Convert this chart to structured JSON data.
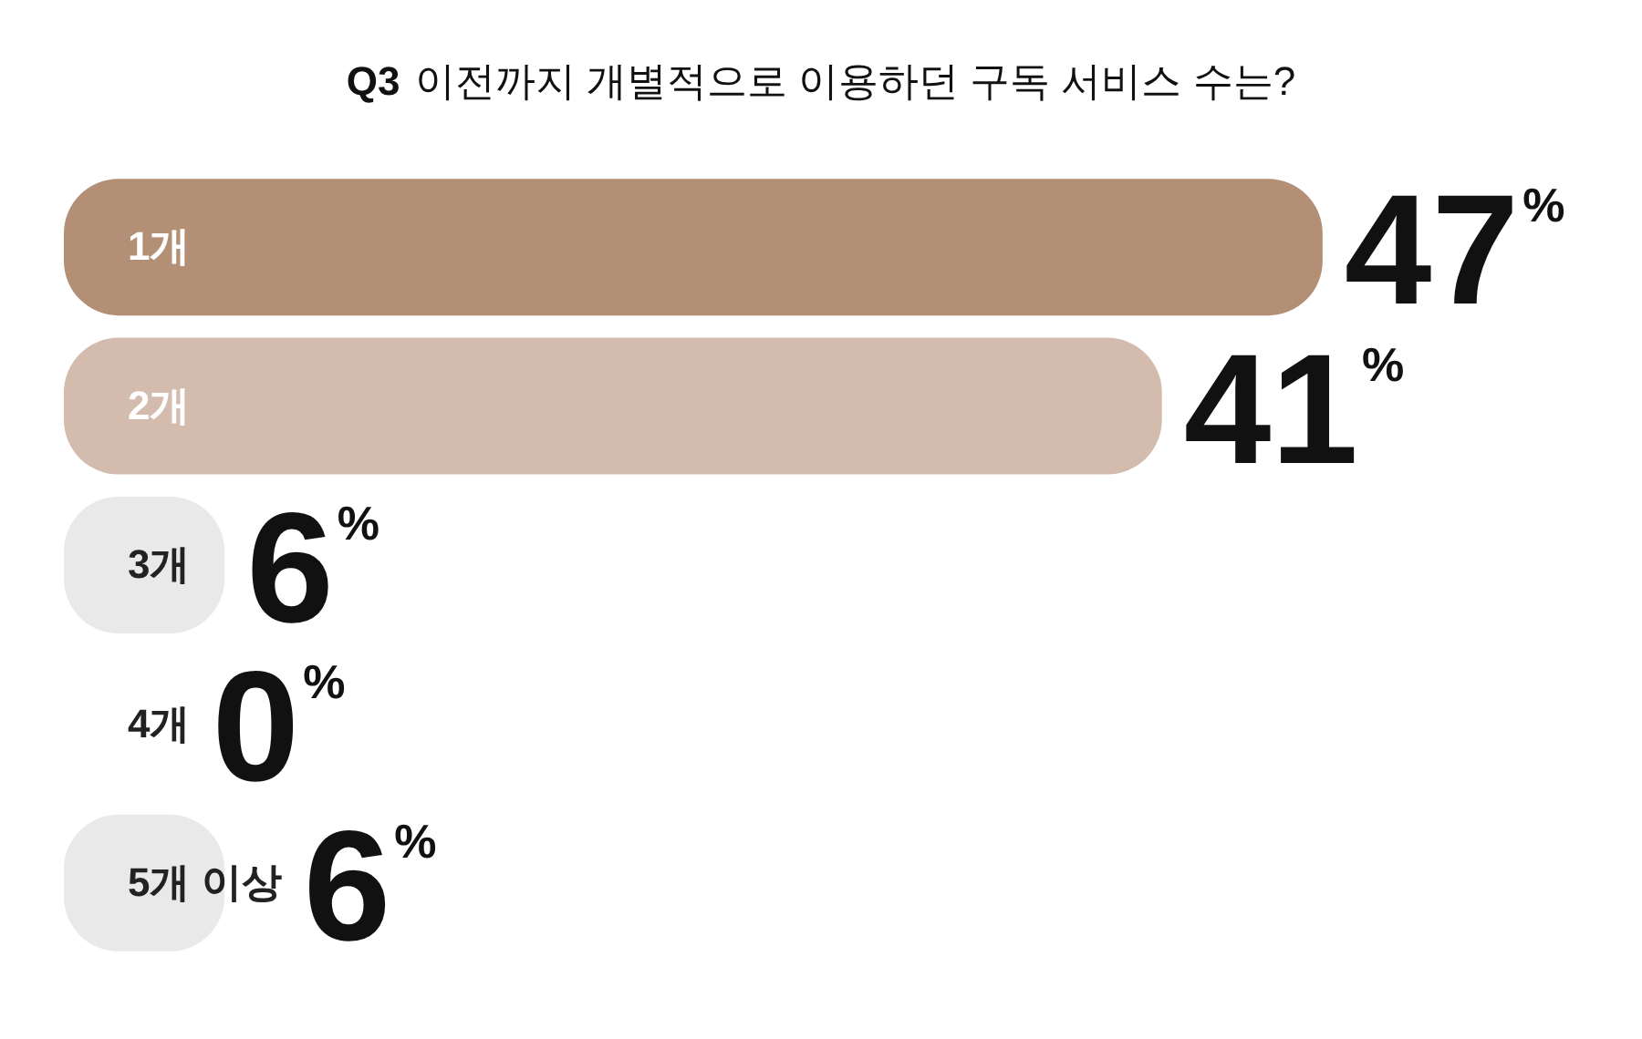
{
  "chart_data": {
    "type": "bar",
    "orientation": "horizontal",
    "title": "Q3 이전까지 개별적으로 이용하던 구독 서비스 수는?",
    "categories": [
      "1개",
      "2개",
      "3개",
      "4개",
      "5개 이상"
    ],
    "values": [
      47,
      41,
      6,
      0,
      6
    ],
    "colors": [
      "#b38f76",
      "#d3bcae",
      "#e9e9e9",
      "#e9e9e9",
      "#e9e9e9"
    ],
    "value_labels": [
      "47%",
      "41%",
      "6%",
      "0%",
      "6%"
    ],
    "legend": false
  }
}
